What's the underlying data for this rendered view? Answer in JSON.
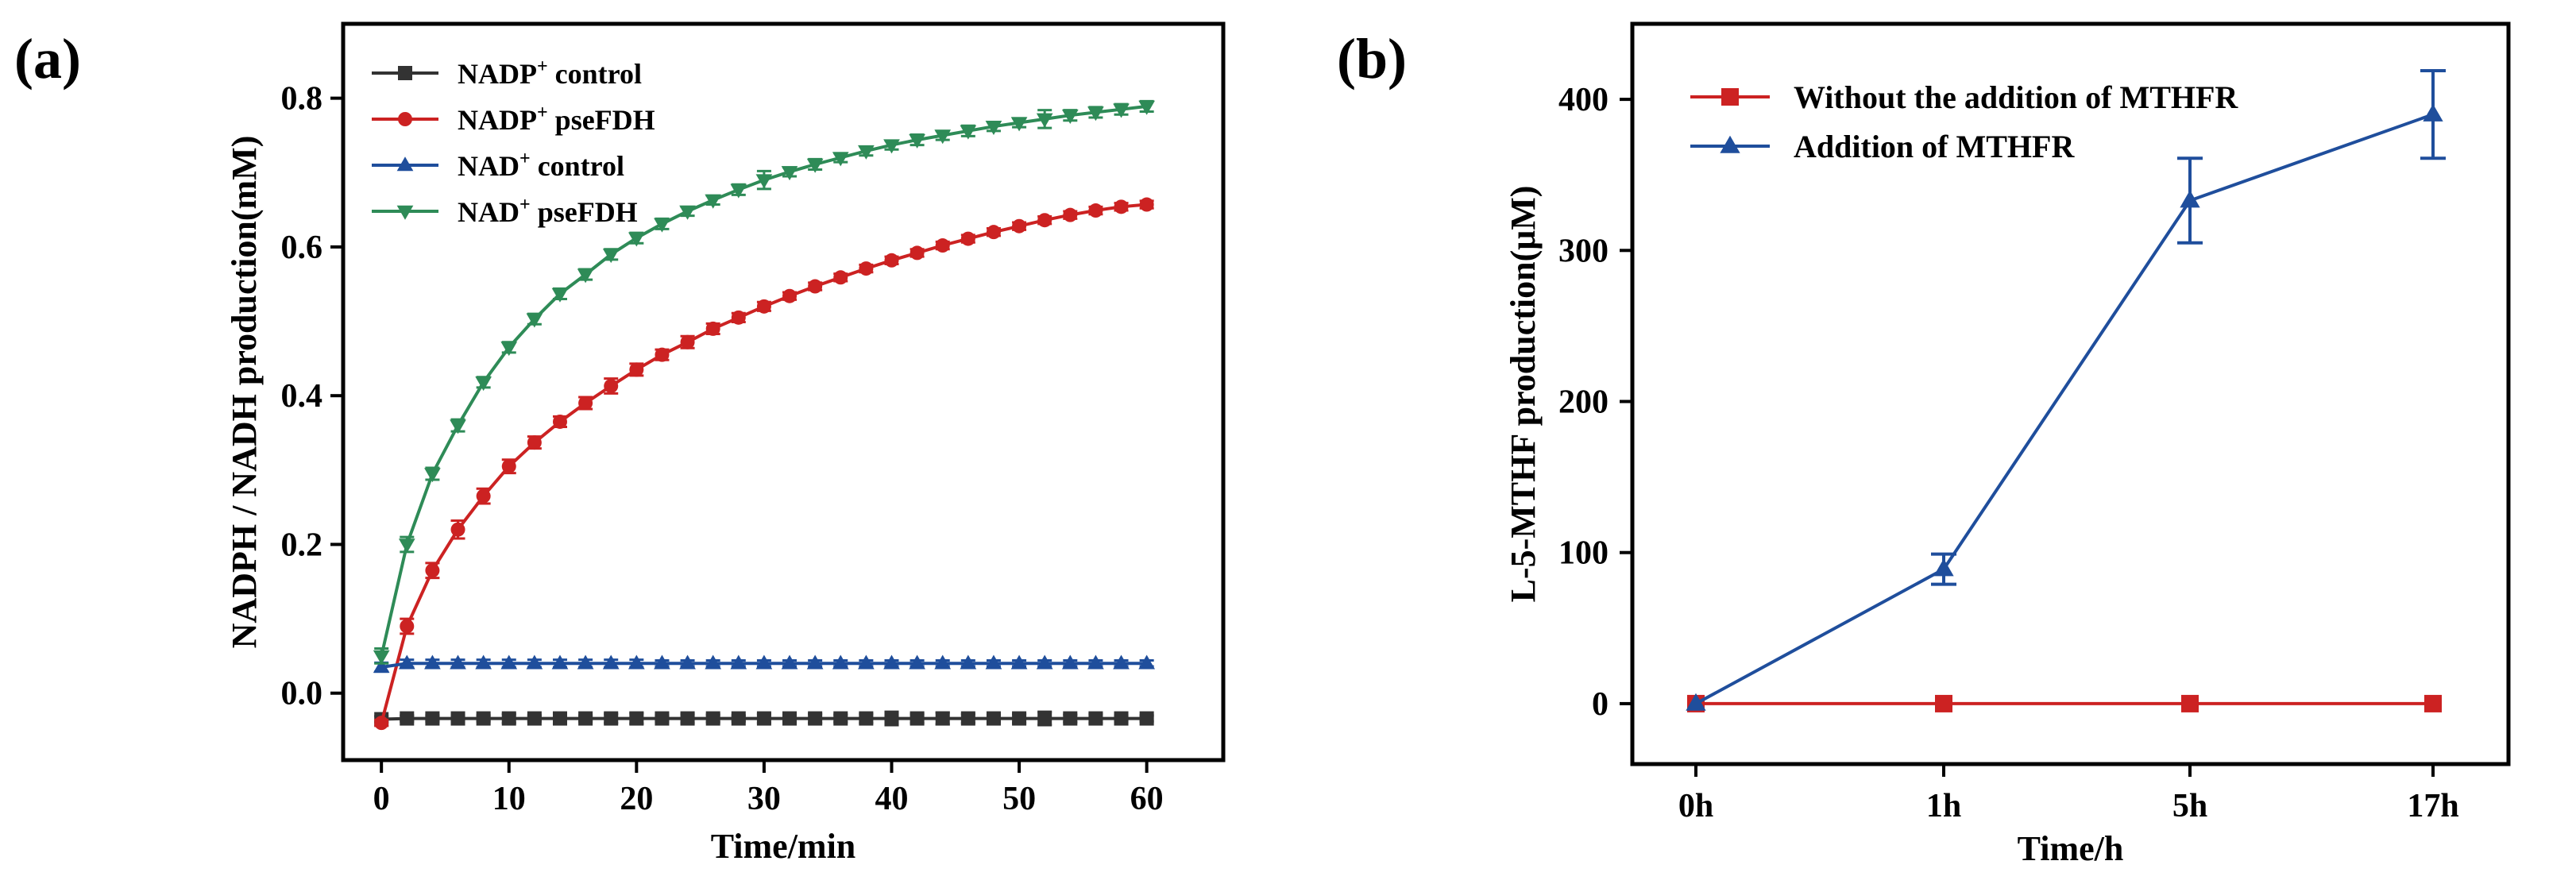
{
  "chart_data": [
    {
      "type": "line",
      "panel_label": "(a)",
      "title": "",
      "xlabel": "Time/min",
      "ylabel": "NADPH / NADH production(mM)",
      "xlim": [
        -3,
        66
      ],
      "ylim": [
        -0.09,
        0.9
      ],
      "xticks": [
        0,
        10,
        20,
        30,
        40,
        50,
        60
      ],
      "xtick_labels": [
        "0",
        "10",
        "20",
        "30",
        "40",
        "50",
        "60"
      ],
      "yticks": [
        0.0,
        0.2,
        0.4,
        0.6,
        0.8
      ],
      "ytick_labels": [
        "0.0",
        "0.2",
        "0.4",
        "0.6",
        "0.8"
      ],
      "legend_position": "top-left",
      "x": [
        0,
        2,
        4,
        6,
        8,
        10,
        12,
        14,
        16,
        18,
        20,
        22,
        24,
        26,
        28,
        30,
        32,
        34,
        36,
        38,
        40,
        42,
        44,
        46,
        48,
        50,
        52,
        54,
        56,
        58,
        60
      ],
      "series": [
        {
          "name": "NADP⁺ control",
          "name_base": "NADP",
          "name_sup": "+",
          "name_rest": " control",
          "color": "#333333",
          "marker": "square",
          "values": [
            -0.035,
            -0.034,
            -0.034,
            -0.034,
            -0.034,
            -0.034,
            -0.034,
            -0.034,
            -0.034,
            -0.034,
            -0.034,
            -0.034,
            -0.034,
            -0.034,
            -0.034,
            -0.034,
            -0.034,
            -0.034,
            -0.034,
            -0.034,
            -0.034,
            -0.034,
            -0.034,
            -0.034,
            -0.034,
            -0.034,
            -0.034,
            -0.034,
            -0.034,
            -0.034,
            -0.034
          ],
          "errors": [
            0.004,
            0.004,
            0.004,
            0.004,
            0.004,
            0.006,
            0.004,
            0.007,
            0.004,
            0.006,
            0.007,
            0.004,
            0.006,
            0.005,
            0.004,
            0.006,
            0.005,
            0.006,
            0.005,
            0.006,
            0.009,
            0.006,
            0.008,
            0.006,
            0.005,
            0.006,
            0.009,
            0.005,
            0.006,
            0.004,
            0.004
          ]
        },
        {
          "name": "NADP⁺ pseFDH",
          "name_base": "NADP",
          "name_sup": "+",
          "name_rest": " pseFDH",
          "color": "#cc2222",
          "marker": "circle",
          "values": [
            -0.04,
            0.09,
            0.165,
            0.22,
            0.265,
            0.305,
            0.337,
            0.365,
            0.39,
            0.413,
            0.435,
            0.455,
            0.472,
            0.49,
            0.505,
            0.52,
            0.534,
            0.547,
            0.559,
            0.571,
            0.582,
            0.592,
            0.602,
            0.611,
            0.62,
            0.628,
            0.636,
            0.643,
            0.649,
            0.654,
            0.657
          ],
          "errors": [
            0.004,
            0.01,
            0.01,
            0.012,
            0.01,
            0.009,
            0.008,
            0.007,
            0.008,
            0.01,
            0.008,
            0.007,
            0.008,
            0.007,
            0.006,
            0.006,
            0.005,
            0.005,
            0.005,
            0.005,
            0.005,
            0.005,
            0.005,
            0.005,
            0.005,
            0.005,
            0.005,
            0.005,
            0.005,
            0.005,
            0.005
          ]
        },
        {
          "name": "NAD⁺ control",
          "name_base": "NAD",
          "name_sup": "+",
          "name_rest": " control",
          "color": "#1f4e9c",
          "marker": "triangle-up",
          "values": [
            0.035,
            0.04,
            0.04,
            0.04,
            0.04,
            0.04,
            0.04,
            0.04,
            0.04,
            0.04,
            0.04,
            0.04,
            0.04,
            0.04,
            0.04,
            0.04,
            0.04,
            0.04,
            0.04,
            0.04,
            0.04,
            0.04,
            0.04,
            0.04,
            0.04,
            0.04,
            0.04,
            0.04,
            0.04,
            0.04,
            0.04
          ],
          "errors": [
            0.006,
            0.005,
            0.005,
            0.005,
            0.005,
            0.005,
            0.005,
            0.005,
            0.005,
            0.005,
            0.005,
            0.004,
            0.004,
            0.004,
            0.004,
            0.004,
            0.004,
            0.004,
            0.004,
            0.004,
            0.004,
            0.004,
            0.004,
            0.004,
            0.004,
            0.004,
            0.004,
            0.004,
            0.004,
            0.004,
            0.004
          ]
        },
        {
          "name": "NAD⁺ pseFDH",
          "name_base": "NAD",
          "name_sup": "+",
          "name_rest": " pseFDH",
          "color": "#2e8b57",
          "marker": "triangle-down",
          "values": [
            0.05,
            0.2,
            0.295,
            0.36,
            0.418,
            0.465,
            0.503,
            0.537,
            0.563,
            0.59,
            0.612,
            0.631,
            0.648,
            0.663,
            0.677,
            0.69,
            0.701,
            0.711,
            0.72,
            0.729,
            0.737,
            0.744,
            0.75,
            0.756,
            0.762,
            0.767,
            0.772,
            0.777,
            0.781,
            0.785,
            0.789
          ],
          "errors": [
            0.01,
            0.01,
            0.008,
            0.008,
            0.007,
            0.007,
            0.007,
            0.007,
            0.007,
            0.007,
            0.007,
            0.007,
            0.006,
            0.006,
            0.007,
            0.012,
            0.006,
            0.007,
            0.006,
            0.006,
            0.006,
            0.007,
            0.006,
            0.007,
            0.006,
            0.006,
            0.012,
            0.007,
            0.007,
            0.007,
            0.007
          ]
        }
      ]
    },
    {
      "type": "line",
      "panel_label": "(b)",
      "title": "",
      "xlabel": "Time/h",
      "ylabel": "L-5-MTHF production(μM)",
      "categories": [
        "0h",
        "1h",
        "5h",
        "17h"
      ],
      "ylim": [
        -40,
        450
      ],
      "yticks": [
        0,
        100,
        200,
        300,
        400
      ],
      "ytick_labels": [
        "0",
        "100",
        "200",
        "300",
        "400"
      ],
      "legend_position": "top-left",
      "series": [
        {
          "name": "Without the addition of MTHFR",
          "color": "#cc2222",
          "marker": "square",
          "values": [
            0,
            0,
            0,
            0
          ],
          "errors": [
            0,
            0,
            0,
            0
          ]
        },
        {
          "name": "Addition of MTHFR",
          "color": "#1f4e9c",
          "marker": "triangle-up",
          "values": [
            0,
            89,
            333,
            390
          ],
          "errors": [
            0,
            10,
            28,
            29
          ]
        }
      ]
    }
  ]
}
